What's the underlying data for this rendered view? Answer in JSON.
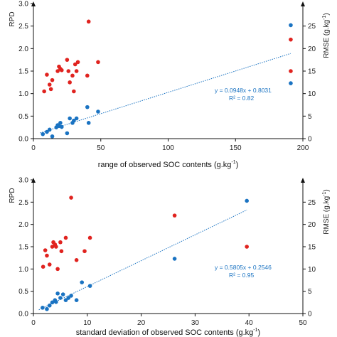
{
  "colors": {
    "rpd": "#e0231f",
    "rmse": "#1a73c2",
    "axis": "#111111"
  },
  "chart_data": [
    {
      "type": "scatter",
      "xlabel": "range of observed SOC contents (g.kg",
      "xlabel_sup": "-1",
      "xlabel_end": ")",
      "ylabel_left": "RPD",
      "ylabel_right": "RMSE (g.kg",
      "ylabel_right_sup": "-1",
      "ylabel_right_end": ")",
      "xlim": [
        0,
        200
      ],
      "ylim_left": [
        0,
        3.0
      ],
      "ylim_right": [
        0,
        30
      ],
      "x_ticks": [
        0,
        50,
        100,
        150,
        200
      ],
      "x_ticklabels": [
        "0",
        "50",
        "100",
        "150",
        "200"
      ],
      "y_left_ticks": [
        0,
        0.5,
        1.0,
        1.5,
        2.0,
        2.5,
        3.0
      ],
      "y_left_ticklabels": [
        "0.0",
        "0.5",
        "1.0",
        "1.5",
        "2.0",
        "2.5",
        "3.0"
      ],
      "y_right_ticks": [
        0,
        5,
        10,
        15,
        20,
        25
      ],
      "y_right_ticklabels": [
        "0",
        "5",
        "10",
        "15",
        "20",
        "25"
      ],
      "series": [
        {
          "axis": "left",
          "x": [
            8,
            10,
            12,
            13,
            14,
            18,
            19,
            20,
            21,
            25,
            26,
            27,
            29,
            30,
            31,
            32,
            33,
            40,
            41,
            48,
            191,
            191
          ],
          "y": [
            1.05,
            1.42,
            1.2,
            1.1,
            1.3,
            1.5,
            1.6,
            1.55,
            1.52,
            1.75,
            1.5,
            1.25,
            1.4,
            1.05,
            1.65,
            1.5,
            1.7,
            1.4,
            2.6,
            1.7,
            2.2,
            1.5
          ]
        },
        {
          "axis": "right",
          "x": [
            7,
            10,
            12,
            14,
            17,
            18,
            19,
            20,
            21,
            25,
            27,
            29,
            30,
            32,
            40,
            41,
            48,
            191,
            191
          ],
          "y": [
            1.0,
            1.5,
            2.0,
            0.5,
            2.5,
            3.0,
            2.8,
            3.5,
            2.6,
            1.2,
            4.5,
            3.5,
            4.0,
            4.5,
            7.0,
            3.5,
            6.0,
            12.3,
            25.2
          ]
        }
      ],
      "trendline": {
        "axis": "right",
        "slope": 0.0948,
        "intercept": 0.8031,
        "x_range": [
          5,
          191
        ]
      },
      "annotations": [
        "y = 0.0948x + 0.8031",
        "R² = 0.82"
      ]
    },
    {
      "type": "scatter",
      "xlabel": "standard deviation of observed SOC contents (g.kg",
      "xlabel_sup": "-1",
      "xlabel_end": ")",
      "ylabel_left": "RPD",
      "ylabel_right": "RMSE (g.kg",
      "ylabel_right_sup": "-1",
      "ylabel_right_end": ")",
      "xlim": [
        0,
        50
      ],
      "ylim_left": [
        0,
        3.0
      ],
      "ylim_right": [
        0,
        30
      ],
      "x_ticks": [
        0,
        10,
        20,
        30,
        40,
        50
      ],
      "x_ticklabels": [
        "0",
        "10",
        "20",
        "30",
        "40",
        "50"
      ],
      "y_left_ticks": [
        0,
        0.5,
        1.0,
        1.5,
        2.0,
        2.5,
        3.0
      ],
      "y_left_ticklabels": [
        "0.0",
        "0.5",
        "1.0",
        "1.5",
        "2.0",
        "2.5",
        "3.0"
      ],
      "y_right_ticks": [
        0,
        5,
        10,
        15,
        20,
        25
      ],
      "y_right_ticklabels": [
        "0",
        "5",
        "10",
        "15",
        "20",
        "25"
      ],
      "series": [
        {
          "axis": "left",
          "x": [
            1.8,
            2.2,
            2.5,
            3.0,
            3.5,
            3.7,
            4.0,
            4.2,
            4.5,
            5.0,
            5.2,
            6.0,
            7.0,
            8.0,
            9.5,
            10.5,
            26.2,
            39.6
          ],
          "y": [
            1.05,
            1.42,
            1.3,
            1.1,
            1.5,
            1.6,
            1.55,
            1.5,
            1.0,
            1.6,
            1.4,
            1.7,
            2.6,
            1.2,
            1.4,
            1.7,
            2.2,
            1.5
          ]
        },
        {
          "axis": "right",
          "x": [
            1.7,
            2.5,
            3.0,
            3.5,
            4.0,
            4.2,
            4.5,
            5.0,
            5.5,
            6.0,
            6.5,
            7.0,
            8.0,
            9.0,
            10.5,
            26.2,
            39.6
          ],
          "y": [
            1.3,
            1.0,
            1.8,
            2.5,
            3.0,
            2.6,
            4.5,
            3.5,
            4.3,
            3.0,
            3.5,
            4.0,
            3.0,
            7.0,
            6.2,
            12.3,
            25.3
          ]
        }
      ],
      "trendline": {
        "axis": "right",
        "slope": 0.5805,
        "intercept": 0.2546,
        "x_range": [
          1,
          39.6
        ]
      },
      "annotations": [
        "y = 0.5805x + 0.2546",
        "R² = 0.95"
      ]
    }
  ]
}
